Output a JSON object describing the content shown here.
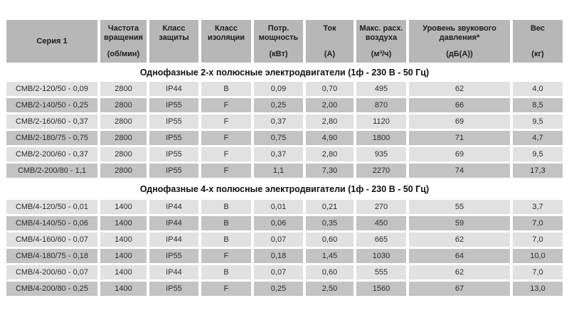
{
  "colors": {
    "header_bg": "#b7b7b7",
    "row_light": "#e1e1e1",
    "row_dark": "#c3c3c3",
    "page_bg": "#ffffff"
  },
  "table": {
    "columns": [
      {
        "label": "Серия 1",
        "unit": ""
      },
      {
        "label": "Частота вращения",
        "unit": "(об/мин)"
      },
      {
        "label": "Класс защиты",
        "unit": ""
      },
      {
        "label": "Класс изоляции",
        "unit": ""
      },
      {
        "label": "Потр. мощность",
        "unit": "(кВт)"
      },
      {
        "label": "Ток",
        "unit": "(А)"
      },
      {
        "label": "Макс. расх. воздуха",
        "unit": "(м³/ч)"
      },
      {
        "label": "Уровень звукового давления*",
        "unit": "(дБ(А))"
      },
      {
        "label": "Вес",
        "unit": "(кг)"
      }
    ],
    "sections": [
      {
        "title": "Однофазные 2-х полюсные электродвигатели (1ф - 230 В - 50 Гц)",
        "rows": [
          [
            "СМВ/2-120/50 - 0,09",
            "2800",
            "IP44",
            "B",
            "0,09",
            "0,70",
            "495",
            "62",
            "4,0"
          ],
          [
            "СМВ/2-140/50 - 0,25",
            "2800",
            "IP55",
            "F",
            "0,25",
            "2,00",
            "870",
            "66",
            "8,5"
          ],
          [
            "СМВ/2-160/60 - 0,37",
            "2800",
            "IP55",
            "F",
            "0,37",
            "2,80",
            "1120",
            "69",
            "9,5"
          ],
          [
            "СМВ/2-180/75 - 0,75",
            "2800",
            "IP55",
            "F",
            "0,75",
            "4,90",
            "1800",
            "71",
            "4,7"
          ],
          [
            "СМВ/2-200/60 - 0,37",
            "2800",
            "IP55",
            "F",
            "0,37",
            "2,80",
            "935",
            "69",
            "9,5"
          ],
          [
            "СМВ/2-200/80 - 1,1",
            "2800",
            "IP55",
            "F",
            "1,1",
            "7,30",
            "2270",
            "74",
            "17,3"
          ]
        ]
      },
      {
        "title": "Однофазные 4-х полюсные электродвигатели (1ф - 230 В - 50 Гц)",
        "rows": [
          [
            "СМВ/4-120/50 - 0,01",
            "1400",
            "IP44",
            "B",
            "0,01",
            "0,21",
            "270",
            "55",
            "3,7"
          ],
          [
            "СМВ/4-140/50 - 0,06",
            "1400",
            "IP44",
            "B",
            "0,06",
            "0,35",
            "450",
            "59",
            "7,0"
          ],
          [
            "СМВ/4-160/60 - 0,07",
            "1400",
            "IP44",
            "B",
            "0,07",
            "0,60",
            "665",
            "62",
            "7,0"
          ],
          [
            "СМВ/4-180/75 - 0,18",
            "1400",
            "IP55",
            "F",
            "0,18",
            "1,45",
            "1030",
            "64",
            "10,0"
          ],
          [
            "СМВ/4-200/60 - 0,07",
            "1400",
            "IP44",
            "B",
            "0,07",
            "0,60",
            "555",
            "62",
            "7,0"
          ],
          [
            "СМВ/4-200/80 - 0,25",
            "1400",
            "IP55",
            "F",
            "0,25",
            "2,50",
            "1560",
            "67",
            "13,0"
          ]
        ]
      }
    ]
  }
}
